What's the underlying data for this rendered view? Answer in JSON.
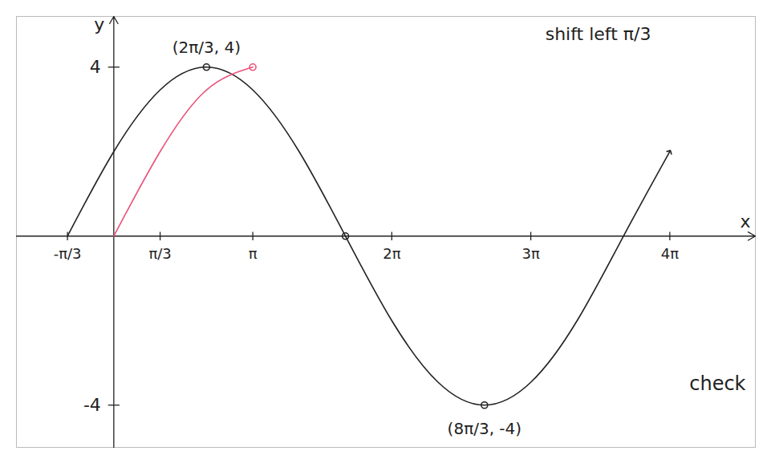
{
  "chart_data": {
    "type": "line",
    "title": "shift left π/3",
    "x_label": "x",
    "y_label": "y",
    "xlim": [
      -2.2,
      14.5
    ],
    "ylim": [
      -5,
      5.2
    ],
    "xticks": [
      {
        "value": -1.0472,
        "label": "-π/3"
      },
      {
        "value": 1.0472,
        "label": "π/3"
      },
      {
        "value": 3.1416,
        "label": "π"
      },
      {
        "value": 6.2832,
        "label": "2π"
      },
      {
        "value": 9.4248,
        "label": "3π"
      },
      {
        "value": 12.5664,
        "label": "4π"
      }
    ],
    "yticks": [
      4,
      -4
    ],
    "series": [
      {
        "color": "#222222",
        "marker": "arrow",
        "x": [
          -1.0472,
          0,
          1.0472,
          2.0944,
          3.1416,
          4.1888,
          5.236,
          6.2832,
          7.3304,
          8.3776,
          9.4248,
          10.472,
          11.519,
          12.566
        ],
        "values": [
          0,
          2,
          3.46,
          4,
          3.46,
          2,
          0,
          -2,
          -3.46,
          -4,
          -3.46,
          -2,
          0,
          2
        ]
      },
      {
        "color": "#e8527a",
        "x": [
          0,
          1.0472,
          2.0944,
          3.1416
        ],
        "values": [
          0,
          2,
          3.46,
          4
        ]
      }
    ],
    "points": [
      {
        "x": 2.0944,
        "y": 4,
        "label": "(2π/3, 4)",
        "color": "#222222"
      },
      {
        "x": 5.236,
        "y": 0,
        "color": "#222222"
      },
      {
        "x": 8.3776,
        "y": -4,
        "label": "(8π/3, -4)",
        "color": "#222222"
      },
      {
        "x": 3.1416,
        "y": 4,
        "color": "#e8527a"
      }
    ],
    "annotations": [
      "check"
    ]
  }
}
